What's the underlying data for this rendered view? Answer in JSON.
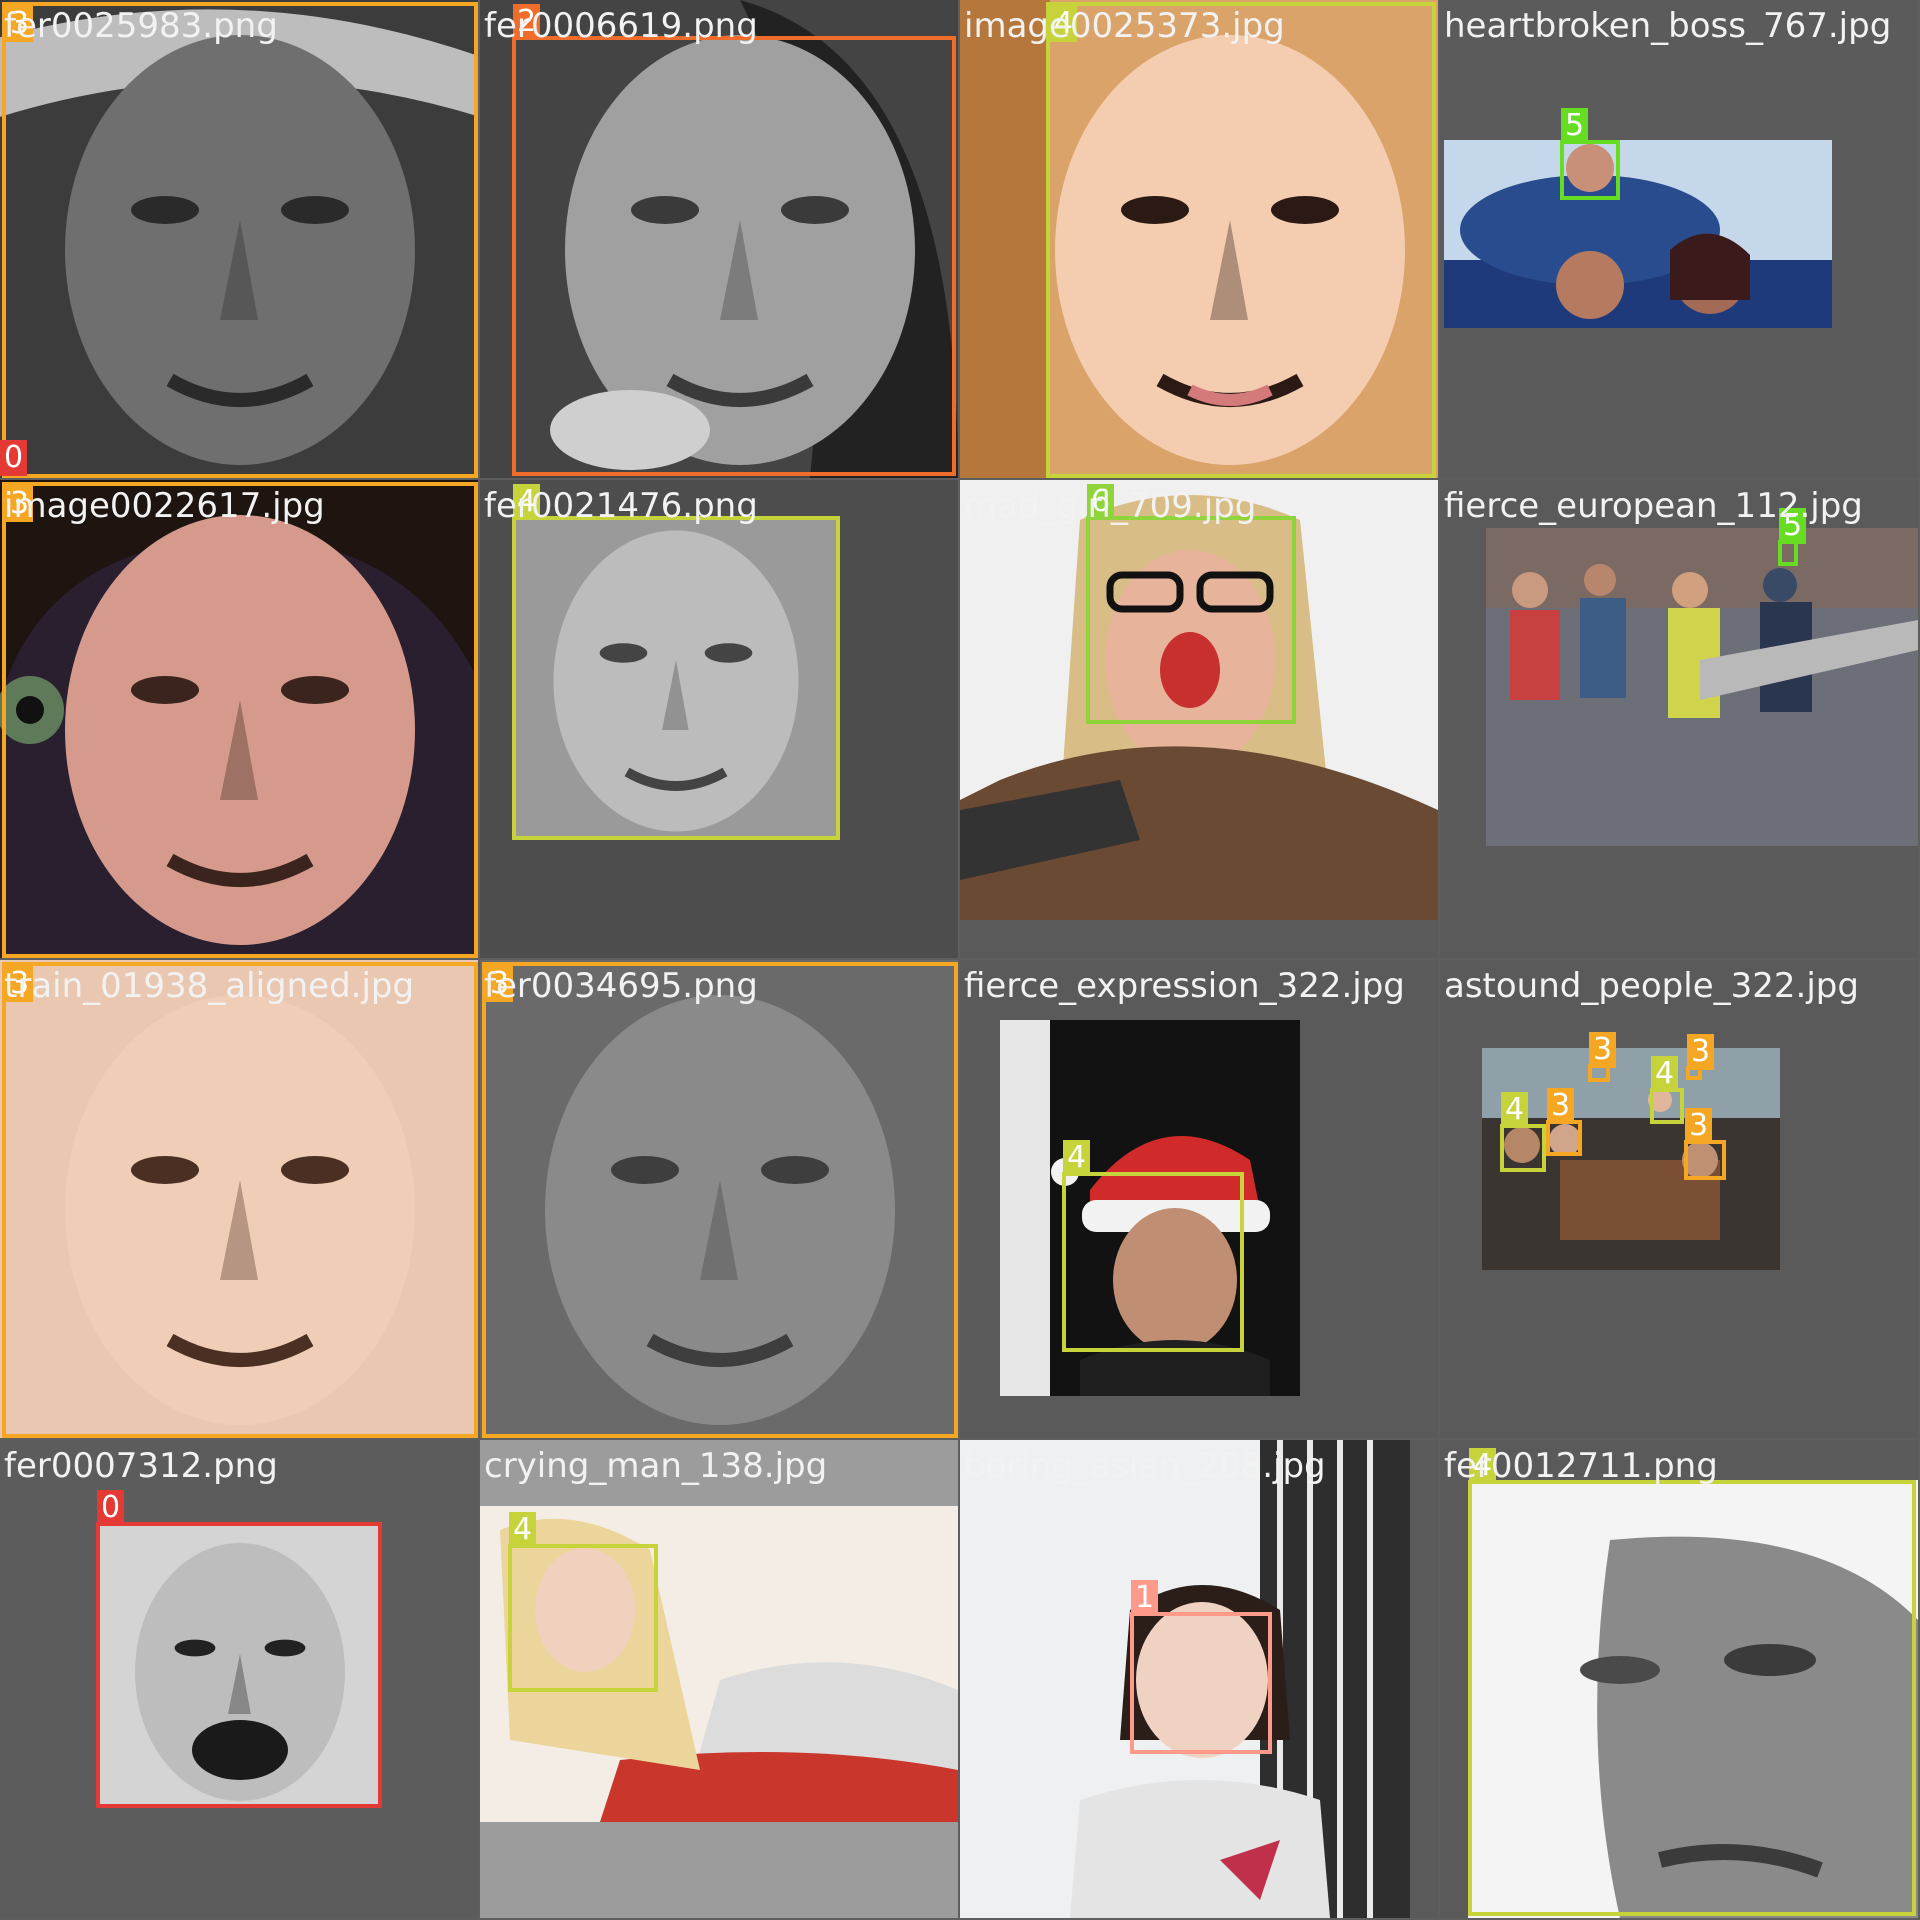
{
  "grid": {
    "tiles": [
      {
        "file": "fer0025983.png",
        "scene": "gray-face-cap",
        "boxes": [
          {
            "label": "3",
            "color": "#f5a623"
          },
          {
            "label": "0",
            "color": "#e53935"
          }
        ]
      },
      {
        "file": "fer0006619.png",
        "scene": "gray-face-woman",
        "boxes": [
          {
            "label": "2",
            "color": "#ef6c2a"
          }
        ]
      },
      {
        "file": "image0025373.jpg",
        "scene": "color-face-woman",
        "boxes": [
          {
            "label": "4",
            "color": "#c6d33a"
          }
        ]
      },
      {
        "file": "heartbroken_boss_767.jpg",
        "scene": "group-three",
        "boxes": [
          {
            "label": "5",
            "color": "#66dd22"
          }
        ]
      },
      {
        "file": "image0022617.jpg",
        "scene": "color-face-angry",
        "boxes": [
          {
            "label": "3",
            "color": "#f5a623"
          }
        ]
      },
      {
        "file": "fer0021476.png",
        "scene": "gray-face-old",
        "boxes": [
          {
            "label": "4",
            "color": "#c6d33a"
          }
        ]
      },
      {
        "file": "mad_girl_709.jpg",
        "scene": "woman-glasses",
        "boxes": [
          {
            "label": "6",
            "color": "#8fd43a"
          }
        ]
      },
      {
        "file": "fierce_european_112.jpg",
        "scene": "crowd-protest",
        "boxes": [
          {
            "label": "5",
            "color": "#66dd22"
          }
        ]
      },
      {
        "file": "train_01938_aligned.jpg",
        "scene": "color-face-smile",
        "boxes": [
          {
            "label": "3",
            "color": "#f5a623"
          }
        ]
      },
      {
        "file": "fer0034695.png",
        "scene": "gray-face-baby",
        "boxes": [
          {
            "label": "3",
            "color": "#f5a623"
          }
        ]
      },
      {
        "file": "fierce_expression_322.jpg",
        "scene": "santa-hat",
        "boxes": [
          {
            "label": "4",
            "color": "#c6d33a"
          }
        ]
      },
      {
        "file": "astound_people_322.jpg",
        "scene": "group-table",
        "boxes": [
          {
            "label": "4",
            "color": "#c6d33a"
          },
          {
            "label": "3",
            "color": "#f5a623"
          },
          {
            "label": "3",
            "color": "#f5a623"
          },
          {
            "label": "4",
            "color": "#c6d33a"
          },
          {
            "label": "3",
            "color": "#f5a623"
          },
          {
            "label": "3",
            "color": "#f5a623"
          }
        ]
      },
      {
        "file": "fer0007312.png",
        "scene": "gray-face-scream",
        "boxes": [
          {
            "label": "0",
            "color": "#e53935"
          }
        ]
      },
      {
        "file": "crying_man_138.jpg",
        "scene": "blonde-lying",
        "boxes": [
          {
            "label": "4",
            "color": "#c6d33a"
          }
        ]
      },
      {
        "file": "boring_asian_208.jpg",
        "scene": "asian-woman",
        "boxes": [
          {
            "label": "1",
            "color": "#ff9a8a"
          }
        ]
      },
      {
        "file": "fer0012711.png",
        "scene": "gray-face-bright",
        "boxes": [
          {
            "label": "4",
            "color": "#c6d33a"
          }
        ]
      }
    ]
  }
}
